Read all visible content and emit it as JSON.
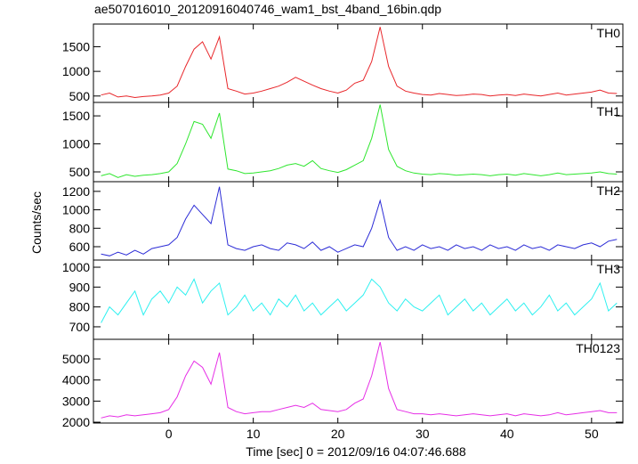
{
  "chart_data": [
    {
      "type": "line",
      "title": "ae507016010_20120916040746_wam1_bst_4band_16bin.qdp",
      "label": "TH0",
      "color": "#e8262a",
      "x": [
        -8,
        -7,
        -6,
        -5,
        -4,
        -3,
        -2,
        -1,
        0,
        1,
        2,
        3,
        4,
        5,
        6,
        7,
        8,
        9,
        10,
        11,
        12,
        13,
        14,
        15,
        16,
        17,
        18,
        19,
        20,
        21,
        22,
        23,
        24,
        25,
        26,
        27,
        28,
        29,
        30,
        31,
        32,
        33,
        34,
        35,
        36,
        37,
        38,
        39,
        40,
        41,
        42,
        43,
        44,
        45,
        46,
        47,
        48,
        49,
        50,
        51,
        52,
        53
      ],
      "values": [
        520,
        560,
        480,
        500,
        470,
        490,
        500,
        520,
        560,
        700,
        1100,
        1450,
        1600,
        1250,
        1700,
        650,
        600,
        540,
        560,
        600,
        650,
        700,
        780,
        880,
        800,
        720,
        650,
        600,
        560,
        620,
        760,
        820,
        1200,
        1900,
        1100,
        700,
        600,
        560,
        530,
        520,
        550,
        530,
        510,
        520,
        540,
        530,
        500,
        520,
        530,
        510,
        540,
        520,
        500,
        530,
        560,
        520,
        540,
        560,
        580,
        620,
        560,
        550
      ],
      "xlim": [
        -8.9,
        53.7
      ],
      "ylim": [
        370,
        1960
      ],
      "yticks": [
        500,
        1000,
        1500
      ]
    },
    {
      "type": "line",
      "label": "TH1",
      "color": "#2ee62e",
      "x": [
        -8,
        -7,
        -6,
        -5,
        -4,
        -3,
        -2,
        -1,
        0,
        1,
        2,
        3,
        4,
        5,
        6,
        7,
        8,
        9,
        10,
        11,
        12,
        13,
        14,
        15,
        16,
        17,
        18,
        19,
        20,
        21,
        22,
        23,
        24,
        25,
        26,
        27,
        28,
        29,
        30,
        31,
        32,
        33,
        34,
        35,
        36,
        37,
        38,
        39,
        40,
        41,
        42,
        43,
        44,
        45,
        46,
        47,
        48,
        49,
        50,
        51,
        52,
        53
      ],
      "values": [
        430,
        470,
        400,
        450,
        420,
        440,
        450,
        470,
        500,
        650,
        1000,
        1400,
        1350,
        1100,
        1550,
        550,
        520,
        470,
        480,
        500,
        520,
        560,
        620,
        650,
        600,
        700,
        560,
        520,
        490,
        540,
        620,
        700,
        1100,
        1700,
        900,
        600,
        520,
        480,
        460,
        450,
        470,
        460,
        440,
        450,
        460,
        450,
        430,
        450,
        460,
        440,
        470,
        450,
        430,
        450,
        480,
        450,
        460,
        470,
        480,
        500,
        470,
        460
      ],
      "xlim": [
        -8.9,
        53.7
      ],
      "ylim": [
        325,
        1740
      ],
      "yticks": [
        500,
        1000,
        1500
      ]
    },
    {
      "type": "line",
      "label": "TH2",
      "ylabel": "Counts/sec",
      "color": "#2b2bd6",
      "x": [
        -8,
        -7,
        -6,
        -5,
        -4,
        -3,
        -2,
        -1,
        0,
        1,
        2,
        3,
        4,
        5,
        6,
        7,
        8,
        9,
        10,
        11,
        12,
        13,
        14,
        15,
        16,
        17,
        18,
        19,
        20,
        21,
        22,
        23,
        24,
        25,
        26,
        27,
        28,
        29,
        30,
        31,
        32,
        33,
        34,
        35,
        36,
        37,
        38,
        39,
        40,
        41,
        42,
        43,
        44,
        45,
        46,
        47,
        48,
        49,
        50,
        51,
        52,
        53
      ],
      "values": [
        520,
        500,
        540,
        510,
        560,
        520,
        580,
        600,
        620,
        700,
        900,
        1050,
        950,
        850,
        1250,
        620,
        580,
        560,
        600,
        620,
        580,
        560,
        640,
        620,
        580,
        650,
        560,
        600,
        540,
        580,
        620,
        600,
        800,
        1100,
        700,
        560,
        600,
        560,
        620,
        580,
        600,
        560,
        620,
        580,
        600,
        560,
        620,
        580,
        600,
        560,
        620,
        580,
        600,
        560,
        620,
        600,
        580,
        620,
        640,
        600,
        660,
        680
      ],
      "xlim": [
        -8.9,
        53.7
      ],
      "ylim": [
        455,
        1305
      ],
      "yticks": [
        600,
        800,
        1000,
        1200
      ]
    },
    {
      "type": "line",
      "label": "TH3",
      "color": "#2ef0f0",
      "x": [
        -8,
        -7,
        -6,
        -5,
        -4,
        -3,
        -2,
        -1,
        0,
        1,
        2,
        3,
        4,
        5,
        6,
        7,
        8,
        9,
        10,
        11,
        12,
        13,
        14,
        15,
        16,
        17,
        18,
        19,
        20,
        21,
        22,
        23,
        24,
        25,
        26,
        27,
        28,
        29,
        30,
        31,
        32,
        33,
        34,
        35,
        36,
        37,
        38,
        39,
        40,
        41,
        42,
        43,
        44,
        45,
        46,
        47,
        48,
        49,
        50,
        51,
        52,
        53
      ],
      "values": [
        720,
        800,
        760,
        820,
        880,
        760,
        840,
        880,
        820,
        900,
        860,
        940,
        820,
        880,
        920,
        760,
        800,
        860,
        780,
        820,
        760,
        840,
        800,
        860,
        780,
        820,
        760,
        800,
        840,
        780,
        820,
        860,
        940,
        900,
        820,
        780,
        840,
        800,
        780,
        820,
        860,
        760,
        800,
        840,
        780,
        820,
        760,
        800,
        840,
        780,
        820,
        760,
        800,
        860,
        780,
        820,
        760,
        800,
        840,
        920,
        780,
        820
      ],
      "xlim": [
        -8.9,
        53.7
      ],
      "ylim": [
        637,
        1036
      ],
      "yticks": [
        700,
        800,
        900,
        1000
      ]
    },
    {
      "type": "line",
      "label": "TH0123",
      "color": "#e62ee6",
      "xlabel": "Time [sec] 0 = 2012/09/16 04:07:46.688",
      "x": [
        -8,
        -7,
        -6,
        -5,
        -4,
        -3,
        -2,
        -1,
        0,
        1,
        2,
        3,
        4,
        5,
        6,
        7,
        8,
        9,
        10,
        11,
        12,
        13,
        14,
        15,
        16,
        17,
        18,
        19,
        20,
        21,
        22,
        23,
        24,
        25,
        26,
        27,
        28,
        29,
        30,
        31,
        32,
        33,
        34,
        35,
        36,
        37,
        38,
        39,
        40,
        41,
        42,
        43,
        44,
        45,
        46,
        47,
        48,
        49,
        50,
        51,
        52,
        53
      ],
      "values": [
        2200,
        2300,
        2250,
        2350,
        2300,
        2350,
        2400,
        2450,
        2600,
        3200,
        4200,
        4900,
        4600,
        3800,
        5300,
        2700,
        2500,
        2400,
        2450,
        2500,
        2500,
        2600,
        2700,
        2800,
        2700,
        2900,
        2600,
        2550,
        2500,
        2600,
        2900,
        3100,
        4200,
        5800,
        3600,
        2600,
        2500,
        2400,
        2400,
        2350,
        2400,
        2350,
        2300,
        2350,
        2400,
        2350,
        2300,
        2350,
        2400,
        2300,
        2400,
        2350,
        2300,
        2350,
        2450,
        2350,
        2400,
        2450,
        2500,
        2550,
        2450,
        2450
      ],
      "xlim": [
        -8.9,
        53.7
      ],
      "ylim": [
        1960,
        5930
      ],
      "yticks": [
        2000,
        3000,
        4000,
        5000
      ],
      "xticks": [
        0,
        10,
        20,
        30,
        40,
        50
      ]
    }
  ]
}
